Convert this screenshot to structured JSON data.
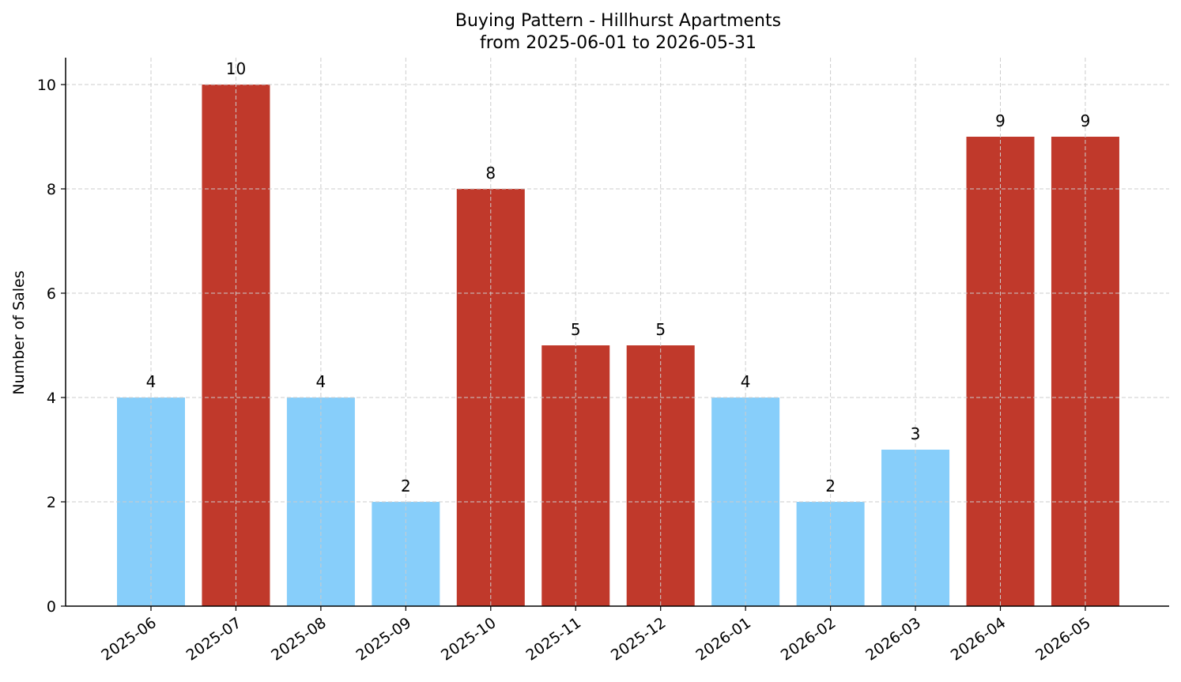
{
  "chart_data": {
    "type": "bar",
    "title": "Buying Pattern - Hillhurst Apartments",
    "subtitle": "from 2025-06-01 to 2026-05-31",
    "xlabel": "",
    "ylabel": "Number of Sales",
    "categories": [
      "2025-06",
      "2025-07",
      "2025-08",
      "2025-09",
      "2025-10",
      "2025-11",
      "2025-12",
      "2026-01",
      "2026-02",
      "2026-03",
      "2026-04",
      "2026-05"
    ],
    "values": [
      4,
      10,
      4,
      2,
      8,
      5,
      5,
      4,
      2,
      3,
      9,
      9
    ],
    "bar_colors": [
      "#87CEFA",
      "#C0392B",
      "#87CEFA",
      "#87CEFA",
      "#C0392B",
      "#C0392B",
      "#C0392B",
      "#87CEFA",
      "#87CEFA",
      "#87CEFA",
      "#C0392B",
      "#C0392B"
    ],
    "yticks": [
      0,
      2,
      4,
      6,
      8,
      10
    ],
    "ylim": [
      0,
      10.5
    ],
    "grid": true,
    "data_labels": true
  }
}
